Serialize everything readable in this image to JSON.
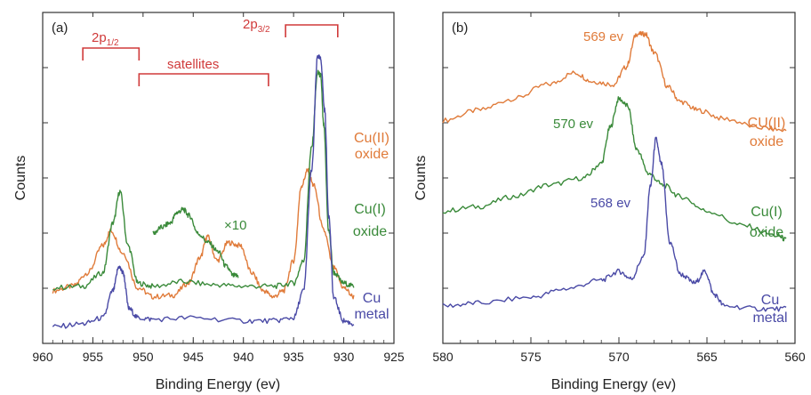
{
  "chart_data": [
    {
      "panel": "(a)",
      "type": "line",
      "xlabel": "Binding Energy (ev)",
      "ylabel": "Counts",
      "x_ticks": [
        960,
        955,
        950,
        945,
        940,
        935,
        930,
        925
      ],
      "xlim": [
        960,
        925
      ],
      "x_reversed": true,
      "y_tick_labels": false,
      "series": [
        {
          "name": "Cu(II) oxide",
          "label_lines": [
            "Cu(II)",
            "oxide"
          ],
          "color": "#e07b3a",
          "x": [
            959,
            957,
            955.5,
            954,
            953.2,
            952,
            950.5,
            949,
            947,
            945.5,
            944.3,
            943.6,
            942.6,
            941.5,
            940.3,
            939.2,
            938,
            937,
            936,
            935,
            934.2,
            933.6,
            933,
            932,
            931,
            930,
            929
          ],
          "y": [
            0.3,
            0.33,
            0.42,
            0.6,
            0.7,
            0.55,
            0.32,
            0.26,
            0.27,
            0.35,
            0.52,
            0.66,
            0.5,
            0.62,
            0.6,
            0.42,
            0.3,
            0.26,
            0.3,
            0.5,
            1.0,
            1.1,
            1.0,
            0.7,
            0.45,
            0.32,
            0.26
          ]
        },
        {
          "name": "Cu(I) oxide",
          "label_lines": [
            "Cu(I)",
            "oxide"
          ],
          "color": "#3a8a3a",
          "x": [
            959,
            956,
            954,
            953,
            952.3,
            951.5,
            950.5,
            949,
            946,
            943,
            940,
            937,
            935,
            934,
            933.2,
            932.6,
            932.3,
            932,
            931.5,
            931,
            930,
            929
          ],
          "y": [
            0.32,
            0.33,
            0.42,
            0.75,
            0.96,
            0.6,
            0.35,
            0.33,
            0.36,
            0.34,
            0.33,
            0.33,
            0.35,
            0.5,
            1.25,
            1.75,
            1.73,
            1.4,
            0.7,
            0.42,
            0.35,
            0.33
          ]
        },
        {
          "name": "Cu(I) oxide x10 satellite region",
          "color": "#3a8a3a",
          "x": [
            949,
            948.2,
            947.3,
            946.6,
            946,
            945.4,
            944.5,
            943.5,
            942.5,
            941.7,
            941,
            940.5
          ],
          "y": [
            0.68,
            0.72,
            0.75,
            0.82,
            0.84,
            0.8,
            0.68,
            0.62,
            0.56,
            0.46,
            0.4,
            0.4
          ]
        },
        {
          "name": "Cu metal",
          "label_lines": [
            "Cu",
            "metal"
          ],
          "color": "#4a4aa6",
          "x": [
            959,
            956,
            954,
            953,
            952.4,
            952,
            951.4,
            950.5,
            949,
            945,
            940,
            937,
            935,
            934,
            933.2,
            932.6,
            932.3,
            931.9,
            931.5,
            931,
            930,
            929
          ],
          "y": [
            0.06,
            0.08,
            0.12,
            0.3,
            0.46,
            0.42,
            0.18,
            0.12,
            0.11,
            0.12,
            0.1,
            0.1,
            0.12,
            0.3,
            1.1,
            1.86,
            1.84,
            1.5,
            0.8,
            0.25,
            0.1,
            0.08
          ]
        }
      ],
      "annotations": [
        {
          "text": "2p1/2",
          "main": "2p",
          "sub": "1/2",
          "bracket": [
            956,
            950.4
          ],
          "color": "#d03a3a"
        },
        {
          "text": "satellites",
          "bracket": [
            950.4,
            937.5
          ],
          "color": "#d03a3a"
        },
        {
          "text": "2p3/2",
          "main": "2p",
          "sub": "3/2",
          "bracket": [
            935.8,
            930.6
          ],
          "color": "#d03a3a"
        },
        {
          "text": "×10",
          "color": "#3a8a3a"
        }
      ]
    },
    {
      "panel": "(b)",
      "type": "line",
      "xlabel": "Binding Energy (ev)",
      "ylabel": "Counts",
      "x_ticks": [
        580,
        575,
        570,
        565,
        560
      ],
      "xlim": [
        580,
        560
      ],
      "x_reversed": true,
      "y_tick_labels": false,
      "series": [
        {
          "name": "CU(II) oxide",
          "label_lines": [
            "CU(II)",
            "oxide"
          ],
          "color": "#e07b3a",
          "peak_label": "569 ev",
          "x": [
            580,
            578,
            576,
            574,
            572.5,
            571.5,
            570.3,
            569.6,
            569,
            568.5,
            568,
            567.2,
            566.5,
            565.5,
            564,
            562,
            560.5
          ],
          "y": [
            1.35,
            1.42,
            1.5,
            1.6,
            1.68,
            1.62,
            1.6,
            1.72,
            1.95,
            1.95,
            1.82,
            1.58,
            1.48,
            1.42,
            1.36,
            1.3,
            1.28
          ]
        },
        {
          "name": "Cu(I) oxide",
          "label_lines": [
            "Cu(I)",
            "oxide"
          ],
          "color": "#3a8a3a",
          "peak_label": "570 ev",
          "x": [
            580,
            578,
            576,
            574,
            572,
            571,
            570.5,
            570,
            569.5,
            569,
            568.3,
            567.5,
            566.5,
            565,
            563,
            561,
            560.5
          ],
          "y": [
            0.72,
            0.75,
            0.82,
            0.9,
            0.95,
            1.05,
            1.3,
            1.5,
            1.45,
            1.15,
            0.98,
            0.9,
            0.82,
            0.72,
            0.62,
            0.55,
            0.52
          ]
        },
        {
          "name": "Cu metal",
          "label_lines": [
            "Cu",
            "metal"
          ],
          "color": "#4a4aa6",
          "peak_label": "568 ev",
          "x": [
            580,
            578,
            575,
            573,
            571,
            570,
            569.3,
            568.6,
            568.2,
            567.9,
            567.6,
            567.1,
            566.5,
            565.7,
            565.1,
            564.6,
            564,
            562,
            560.5
          ],
          "y": [
            0.06,
            0.08,
            0.12,
            0.18,
            0.24,
            0.3,
            0.25,
            0.4,
            0.9,
            1.22,
            1.05,
            0.5,
            0.28,
            0.22,
            0.3,
            0.14,
            0.06,
            0.04,
            0.04
          ]
        }
      ]
    }
  ]
}
